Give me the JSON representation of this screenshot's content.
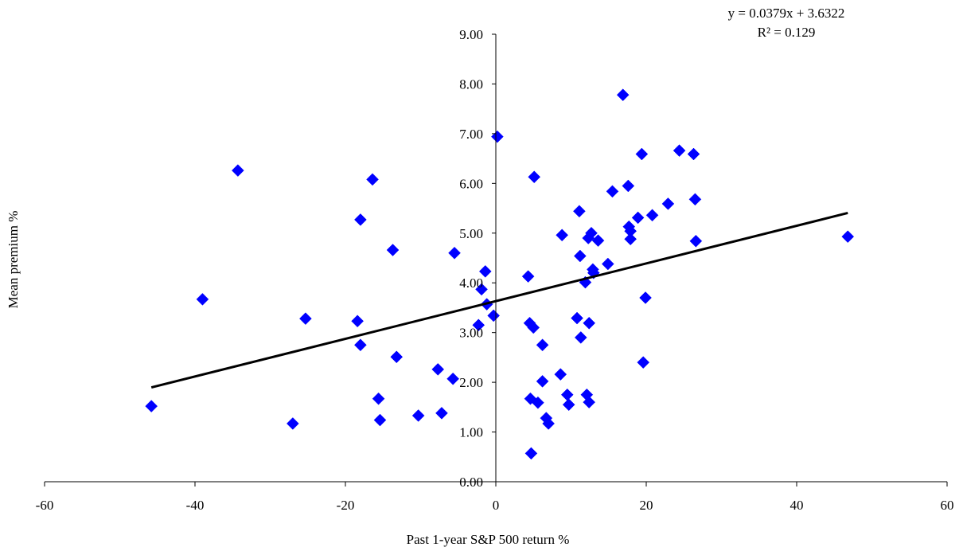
{
  "chart_data": {
    "type": "scatter",
    "title": "",
    "xlabel": "Past 1-year S&P 500 return %",
    "ylabel": "Mean premium %",
    "xlim": [
      -60,
      60
    ],
    "ylim": [
      0,
      9
    ],
    "x_ticks": [
      -60,
      -40,
      -20,
      0,
      20,
      40,
      60
    ],
    "y_ticks": [
      0,
      1,
      2,
      3,
      4,
      5,
      6,
      7,
      8,
      9
    ],
    "x_tick_labels": [
      "-60",
      "-40",
      "-20",
      "0",
      "20",
      "40",
      "60"
    ],
    "y_tick_labels": [
      "0.00",
      "1.00",
      "2.00",
      "3.00",
      "4.00",
      "5.00",
      "6.00",
      "7.00",
      "8.00",
      "9.00"
    ],
    "grid": false,
    "legend": "none",
    "marker": "diamond",
    "marker_color": "#0000ff",
    "trendline": {
      "slope": 0.0379,
      "intercept": 3.6322,
      "x_range": [
        -45.8,
        46.8
      ],
      "color": "#000000",
      "equation_label": "y = 0.0379x + 3.6322",
      "r2_label": "R² = 0.129"
    },
    "points": [
      [
        -45.8,
        1.52
      ],
      [
        -39.0,
        3.67
      ],
      [
        -34.3,
        6.26
      ],
      [
        -27.0,
        1.17
      ],
      [
        -25.3,
        3.28
      ],
      [
        -18.4,
        3.23
      ],
      [
        -18.0,
        5.27
      ],
      [
        -18.0,
        2.75
      ],
      [
        -16.4,
        6.08
      ],
      [
        -15.6,
        1.67
      ],
      [
        -15.4,
        1.24
      ],
      [
        -13.7,
        4.66
      ],
      [
        -13.2,
        2.51
      ],
      [
        -10.3,
        1.33
      ],
      [
        -7.7,
        2.26
      ],
      [
        -7.2,
        1.38
      ],
      [
        -5.7,
        2.07
      ],
      [
        -5.5,
        4.6
      ],
      [
        -2.3,
        3.15
      ],
      [
        -1.9,
        3.87
      ],
      [
        -1.4,
        4.23
      ],
      [
        -1.2,
        3.57
      ],
      [
        -0.3,
        3.34
      ],
      [
        0.2,
        6.94
      ],
      [
        4.3,
        4.13
      ],
      [
        4.5,
        3.19
      ],
      [
        4.6,
        1.67
      ],
      [
        4.7,
        0.57
      ],
      [
        5.0,
        3.1
      ],
      [
        5.1,
        6.13
      ],
      [
        5.6,
        1.59
      ],
      [
        6.2,
        2.75
      ],
      [
        6.2,
        2.02
      ],
      [
        6.7,
        1.28
      ],
      [
        7.0,
        1.17
      ],
      [
        8.6,
        2.16
      ],
      [
        8.8,
        4.96
      ],
      [
        9.5,
        1.75
      ],
      [
        9.7,
        1.55
      ],
      [
        10.8,
        3.29
      ],
      [
        11.1,
        5.44
      ],
      [
        11.2,
        4.54
      ],
      [
        11.3,
        2.9
      ],
      [
        11.9,
        4.01
      ],
      [
        12.1,
        1.75
      ],
      [
        12.3,
        4.9
      ],
      [
        12.4,
        1.6
      ],
      [
        12.4,
        3.19
      ],
      [
        12.7,
        5.0
      ],
      [
        12.9,
        4.27
      ],
      [
        13.0,
        4.2
      ],
      [
        13.6,
        4.85
      ],
      [
        14.9,
        4.38
      ],
      [
        15.5,
        5.84
      ],
      [
        16.9,
        7.78
      ],
      [
        17.6,
        5.95
      ],
      [
        17.7,
        5.13
      ],
      [
        17.9,
        5.04
      ],
      [
        17.9,
        4.88
      ],
      [
        18.9,
        5.31
      ],
      [
        19.4,
        6.59
      ],
      [
        19.6,
        2.4
      ],
      [
        19.9,
        3.7
      ],
      [
        20.8,
        5.36
      ],
      [
        22.9,
        5.59
      ],
      [
        24.4,
        6.66
      ],
      [
        26.3,
        6.59
      ],
      [
        26.5,
        5.68
      ],
      [
        26.6,
        4.84
      ],
      [
        46.8,
        4.93
      ]
    ]
  }
}
